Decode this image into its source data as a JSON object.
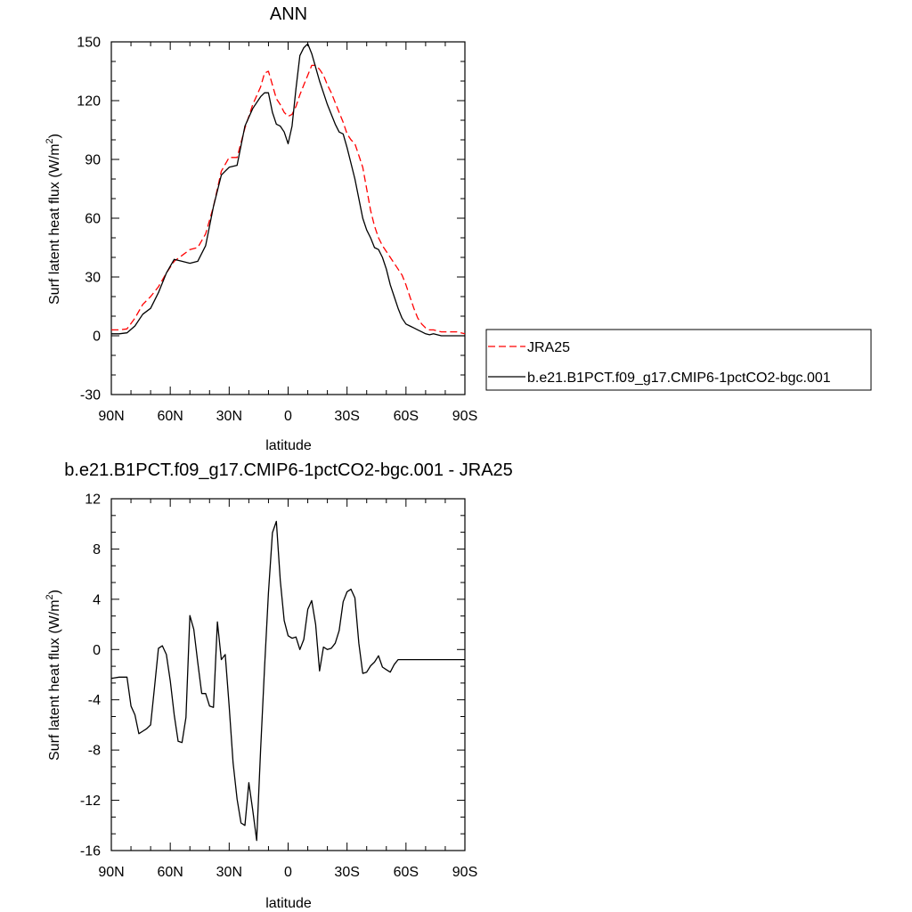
{
  "chart_data": [
    {
      "type": "line",
      "title": "ANN",
      "xlabel": "latitude",
      "ylabel": "Surf latent heat flux (W/m",
      "ylabel_sup": "2",
      "ylabel_close": ")",
      "xlim": [
        90,
        -90
      ],
      "ylim": [
        -30,
        150
      ],
      "yticks": [
        -30,
        0,
        30,
        60,
        90,
        120,
        150
      ],
      "xticks": [
        {
          "value": 90,
          "label": "90N"
        },
        {
          "value": 60,
          "label": "60N"
        },
        {
          "value": 30,
          "label": "30N"
        },
        {
          "value": 0,
          "label": "0"
        },
        {
          "value": -30,
          "label": "30S"
        },
        {
          "value": -60,
          "label": "60S"
        },
        {
          "value": -90,
          "label": "90S"
        }
      ],
      "grid": false,
      "legend_position": "right",
      "series": [
        {
          "name": "JRA25",
          "color": "#ff0000",
          "dash": true,
          "x": [
            90,
            86,
            82,
            78,
            74,
            70,
            66,
            62,
            58,
            54,
            50,
            46,
            42,
            38,
            34,
            30,
            26,
            22,
            18,
            14,
            12,
            10,
            8,
            6,
            4,
            2,
            0,
            -2,
            -4,
            -6,
            -8,
            -10,
            -12,
            -14,
            -16,
            -18,
            -20,
            -22,
            -24,
            -26,
            -28,
            -30,
            -32,
            -34,
            -36,
            -38,
            -40,
            -42,
            -44,
            -46,
            -48,
            -50,
            -52,
            -54,
            -56,
            -58,
            -60,
            -62,
            -64,
            -66,
            -68,
            -70,
            -72,
            -74,
            -76,
            -78,
            -80,
            -82,
            -84,
            -86,
            -88,
            -90
          ],
          "y": [
            3,
            3,
            3.5,
            9,
            16,
            20,
            25,
            32,
            38,
            41,
            44,
            45,
            52,
            66,
            84,
            91,
            91,
            106,
            118,
            127,
            134,
            135,
            128,
            121,
            118,
            114,
            112,
            113,
            117,
            123,
            128,
            133,
            138,
            138,
            136,
            133,
            128,
            124,
            119,
            114,
            109,
            103,
            100,
            98,
            92,
            86,
            75,
            64,
            56,
            50,
            46,
            43,
            40,
            37,
            34,
            31,
            26,
            20,
            14,
            9,
            6,
            4,
            3,
            3,
            2.5,
            2,
            2,
            2,
            2,
            2,
            1.5,
            1
          ]
        },
        {
          "name": "b.e21.B1PCT.f09_g17.CMIP6-1pctCO2-bgc.001",
          "color": "#000000",
          "dash": false,
          "x": [
            90,
            86,
            82,
            78,
            74,
            70,
            66,
            62,
            58,
            54,
            50,
            46,
            42,
            38,
            34,
            30,
            26,
            22,
            18,
            14,
            12,
            10,
            8,
            6,
            4,
            2,
            0,
            -2,
            -4,
            -6,
            -8,
            -10,
            -12,
            -14,
            -16,
            -18,
            -20,
            -22,
            -24,
            -26,
            -28,
            -30,
            -32,
            -34,
            -36,
            -38,
            -40,
            -42,
            -44,
            -46,
            -48,
            -50,
            -52,
            -54,
            -56,
            -58,
            -60,
            -62,
            -64,
            -66,
            -68,
            -70,
            -72,
            -74,
            -76,
            -78,
            -80,
            -82,
            -84,
            -86,
            -88,
            -90
          ],
          "y": [
            1,
            1,
            1.5,
            5,
            11,
            14,
            22,
            32,
            39,
            38,
            37,
            38,
            46,
            66,
            82,
            86,
            87,
            107,
            116,
            122,
            124,
            124,
            114,
            108,
            107,
            104,
            98,
            107,
            126,
            143,
            147,
            149,
            144,
            137,
            130,
            124,
            118,
            113,
            108,
            104,
            103,
            96,
            88,
            80,
            70,
            60,
            54,
            50,
            45,
            44,
            40,
            34,
            26,
            20,
            14,
            9,
            6,
            5,
            4,
            3,
            2,
            1,
            0.5,
            1,
            0.5,
            0,
            0,
            0,
            0,
            0,
            0,
            0
          ]
        }
      ]
    },
    {
      "type": "line",
      "title": "b.e21.B1PCT.f09_g17.CMIP6-1pctCO2-bgc.001 - JRA25",
      "xlabel": "latitude",
      "ylabel": "Surf latent heat flux (W/m",
      "ylabel_sup": "2",
      "ylabel_close": ")",
      "xlim": [
        90,
        -90
      ],
      "ylim": [
        -16,
        12
      ],
      "yticks": [
        -16,
        -12,
        -8,
        -4,
        0,
        4,
        8,
        12
      ],
      "xticks": [
        {
          "value": 90,
          "label": "90N"
        },
        {
          "value": 60,
          "label": "60N"
        },
        {
          "value": 30,
          "label": "30N"
        },
        {
          "value": 0,
          "label": "0"
        },
        {
          "value": -30,
          "label": "30S"
        },
        {
          "value": -60,
          "label": "60S"
        },
        {
          "value": -90,
          "label": "90S"
        }
      ],
      "grid": false,
      "series": [
        {
          "color": "#000000",
          "dash": false,
          "x": [
            90,
            86,
            82,
            80,
            78,
            76,
            74,
            72,
            70,
            68,
            66,
            64,
            62,
            60,
            58,
            56,
            54,
            52,
            50,
            48,
            46,
            44,
            42,
            40,
            38,
            36,
            34,
            32,
            30,
            28,
            26,
            24,
            22,
            20,
            18,
            16,
            14,
            12,
            10,
            8,
            6,
            4,
            2,
            0,
            -2,
            -4,
            -6,
            -8,
            -10,
            -12,
            -14,
            -16,
            -18,
            -20,
            -22,
            -24,
            -26,
            -28,
            -30,
            -32,
            -34,
            -36,
            -38,
            -40,
            -42,
            -44,
            -46,
            -48,
            -50,
            -52,
            -54,
            -56,
            -58,
            -60,
            -62,
            -64,
            -66,
            -68,
            -70,
            -72,
            -74,
            -76,
            -78,
            -80,
            -82,
            -84,
            -86,
            -88,
            -90
          ],
          "y": [
            -2.3,
            -2.2,
            -2.2,
            -4.5,
            -5.2,
            -6.7,
            -6.5,
            -6.3,
            -6.0,
            -3.0,
            0.1,
            0.3,
            -0.4,
            -2.5,
            -5.2,
            -7.3,
            -7.4,
            -5.4,
            2.7,
            1.6,
            -1.0,
            -3.5,
            -3.5,
            -4.5,
            -4.6,
            2.2,
            -0.8,
            -0.4,
            -4.5,
            -9.0,
            -11.9,
            -13.8,
            -14.0,
            -10.6,
            -12.8,
            -15.2,
            -8.0,
            -1.5,
            4.5,
            9.3,
            10.2,
            5.5,
            2.3,
            1.1,
            0.9,
            1.0,
            0.0,
            0.8,
            3.2,
            3.9,
            2.0,
            -1.7,
            0.2,
            0.0,
            0.1,
            0.5,
            1.5,
            3.8,
            4.6,
            4.8,
            4.1,
            0.5,
            -1.9,
            -1.8,
            -1.3,
            -1.0,
            -0.5,
            -1.4,
            -1.6,
            -1.8,
            -1.2,
            -0.8,
            -0.8,
            -0.8,
            -0.8,
            -0.8,
            -0.8,
            -0.8,
            -0.8,
            -0.8,
            -0.8,
            -0.8,
            -0.8,
            -0.8,
            -0.8,
            -0.8,
            -0.8,
            -0.8,
            -0.8
          ]
        }
      ]
    }
  ]
}
